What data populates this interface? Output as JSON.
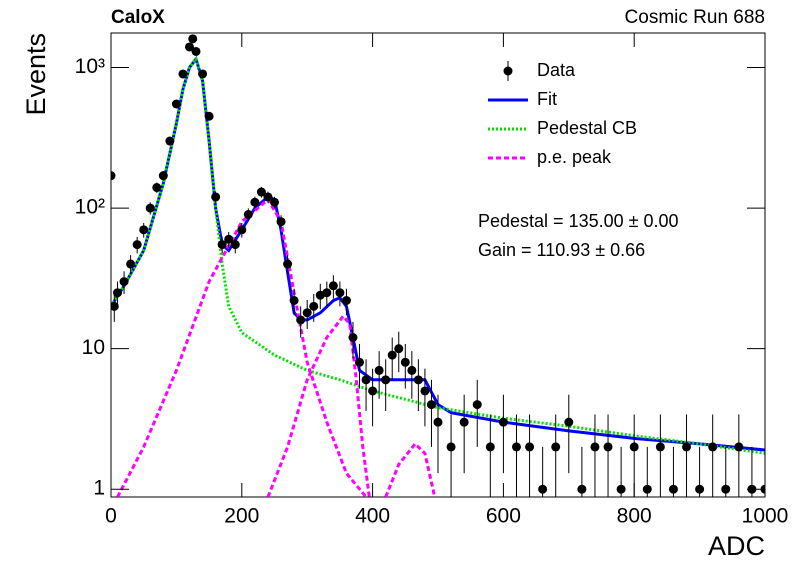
{
  "chart_data": {
    "type": "scatter",
    "title": "CaloX",
    "subtitle": "Cosmic Run 688",
    "xlabel": "ADC",
    "ylabel": "Events",
    "annotations": [
      "Pedestal = 135.00 ± 0.00",
      "Gain = 110.93 ± 0.66"
    ],
    "log_y": true,
    "legend": "upper right",
    "xlim": [
      0,
      1000
    ],
    "ylim": [
      0.88,
      1760
    ],
    "xticks": [
      0,
      200,
      400,
      600,
      800,
      1000
    ],
    "yticks": [
      1,
      10,
      {
        "value": 100,
        "label": "10²"
      },
      {
        "value": 1000,
        "label": "10³"
      }
    ],
    "data": {
      "name": "Data",
      "color": "#000000",
      "x": [
        0,
        5,
        10,
        20,
        30,
        40,
        50,
        60,
        70,
        80,
        90,
        100,
        110,
        120,
        125,
        130,
        140,
        150,
        160,
        170,
        180,
        190,
        200,
        210,
        220,
        230,
        240,
        250,
        260,
        270,
        280,
        290,
        300,
        310,
        320,
        330,
        340,
        350,
        360,
        370,
        380,
        390,
        400,
        410,
        420,
        430,
        440,
        450,
        460,
        470,
        480,
        490,
        500,
        520,
        540,
        560,
        580,
        600,
        620,
        640,
        660,
        680,
        700,
        720,
        740,
        760,
        780,
        800,
        820,
        840,
        860,
        880,
        900,
        920,
        940,
        960,
        980,
        1000
      ],
      "values": [
        170,
        20,
        25,
        30,
        40,
        55,
        70,
        100,
        140,
        170,
        300,
        550,
        900,
        1400,
        1600,
        1300,
        900,
        450,
        120,
        55,
        60,
        55,
        70,
        90,
        110,
        130,
        120,
        110,
        80,
        40,
        22,
        16,
        18,
        20,
        24,
        25,
        28,
        25,
        22,
        12,
        8,
        6,
        5,
        7,
        6,
        9,
        10,
        8,
        7,
        6,
        5,
        4,
        3,
        2,
        3,
        4,
        2,
        3,
        2,
        2,
        1,
        2,
        3,
        1,
        2,
        2,
        1,
        2,
        1,
        2,
        1,
        2,
        1,
        2,
        1,
        2,
        1,
        1
      ],
      "errors": [
        13,
        4.5,
        5,
        5.5,
        6.3,
        7.4,
        8.4,
        10,
        11.8,
        13,
        17.3,
        23.5,
        30,
        37.4,
        40,
        36,
        30,
        21.2,
        11,
        7.4,
        7.7,
        7.4,
        8.4,
        9.5,
        10.5,
        11.4,
        11,
        10.5,
        8.9,
        6.3,
        4.7,
        4,
        4.2,
        4.5,
        4.9,
        5,
        5.3,
        5,
        4.7,
        3.5,
        2.8,
        2.4,
        2.2,
        2.6,
        2.4,
        3,
        3.2,
        2.8,
        2.6,
        2.4,
        2.2,
        2,
        1.7,
        1.4,
        1.7,
        2,
        1.4,
        1.7,
        1.4,
        1.4,
        1,
        1.4,
        1.7,
        1,
        1.4,
        1.4,
        1,
        1.4,
        1,
        1.4,
        1,
        1.4,
        1,
        1.4,
        1,
        1.4,
        1,
        1
      ]
    },
    "series": [
      {
        "name": "Fit",
        "color": "#0000ff",
        "style": "solid",
        "x": [
          0,
          20,
          50,
          80,
          100,
          110,
          120,
          130,
          140,
          150,
          160,
          170,
          180,
          200,
          220,
          240,
          250,
          260,
          270,
          280,
          290,
          300,
          320,
          340,
          350,
          360,
          370,
          380,
          400,
          450,
          480,
          500,
          520,
          600,
          700,
          800,
          900,
          1000
        ],
        "values": [
          20,
          28,
          50,
          150,
          400,
          700,
          1000,
          1150,
          800,
          300,
          100,
          55,
          50,
          70,
          100,
          120,
          115,
          70,
          35,
          18,
          16,
          16,
          18,
          22,
          23,
          20,
          12,
          7,
          6,
          6,
          6,
          4,
          3.5,
          3,
          2.6,
          2.3,
          2.1,
          1.9
        ]
      },
      {
        "name": "Pedestal CB",
        "color": "#00e000",
        "style": "dotted",
        "x": [
          0,
          20,
          50,
          80,
          100,
          110,
          120,
          130,
          140,
          150,
          160,
          170,
          180,
          200,
          250,
          300,
          350,
          400,
          500,
          600,
          700,
          800,
          900,
          1000
        ],
        "values": [
          20,
          28,
          50,
          150,
          400,
          700,
          1000,
          1150,
          800,
          300,
          100,
          40,
          20,
          13,
          9,
          7,
          6,
          5,
          3.8,
          3.2,
          2.8,
          2.4,
          2.1,
          1.8
        ]
      },
      {
        "name": "p.e. peak",
        "color": "#ff00ff",
        "style": "dashed",
        "x": [
          10,
          50,
          100,
          150,
          200,
          240,
          260,
          280,
          300,
          330,
          360,
          390,
          null,
          240,
          270,
          300,
          330,
          355,
          365,
          375,
          385,
          395,
          null,
          420,
          440,
          465,
          480,
          495
        ],
        "values": [
          0.88,
          2,
          7,
          30,
          80,
          115,
          80,
          25,
          8,
          3,
          1.3,
          0.88,
          null,
          0.88,
          2,
          6,
          12,
          17,
          15,
          6,
          2,
          0.88,
          null,
          0.88,
          1.5,
          2.1,
          1.8,
          0.88
        ]
      }
    ]
  }
}
